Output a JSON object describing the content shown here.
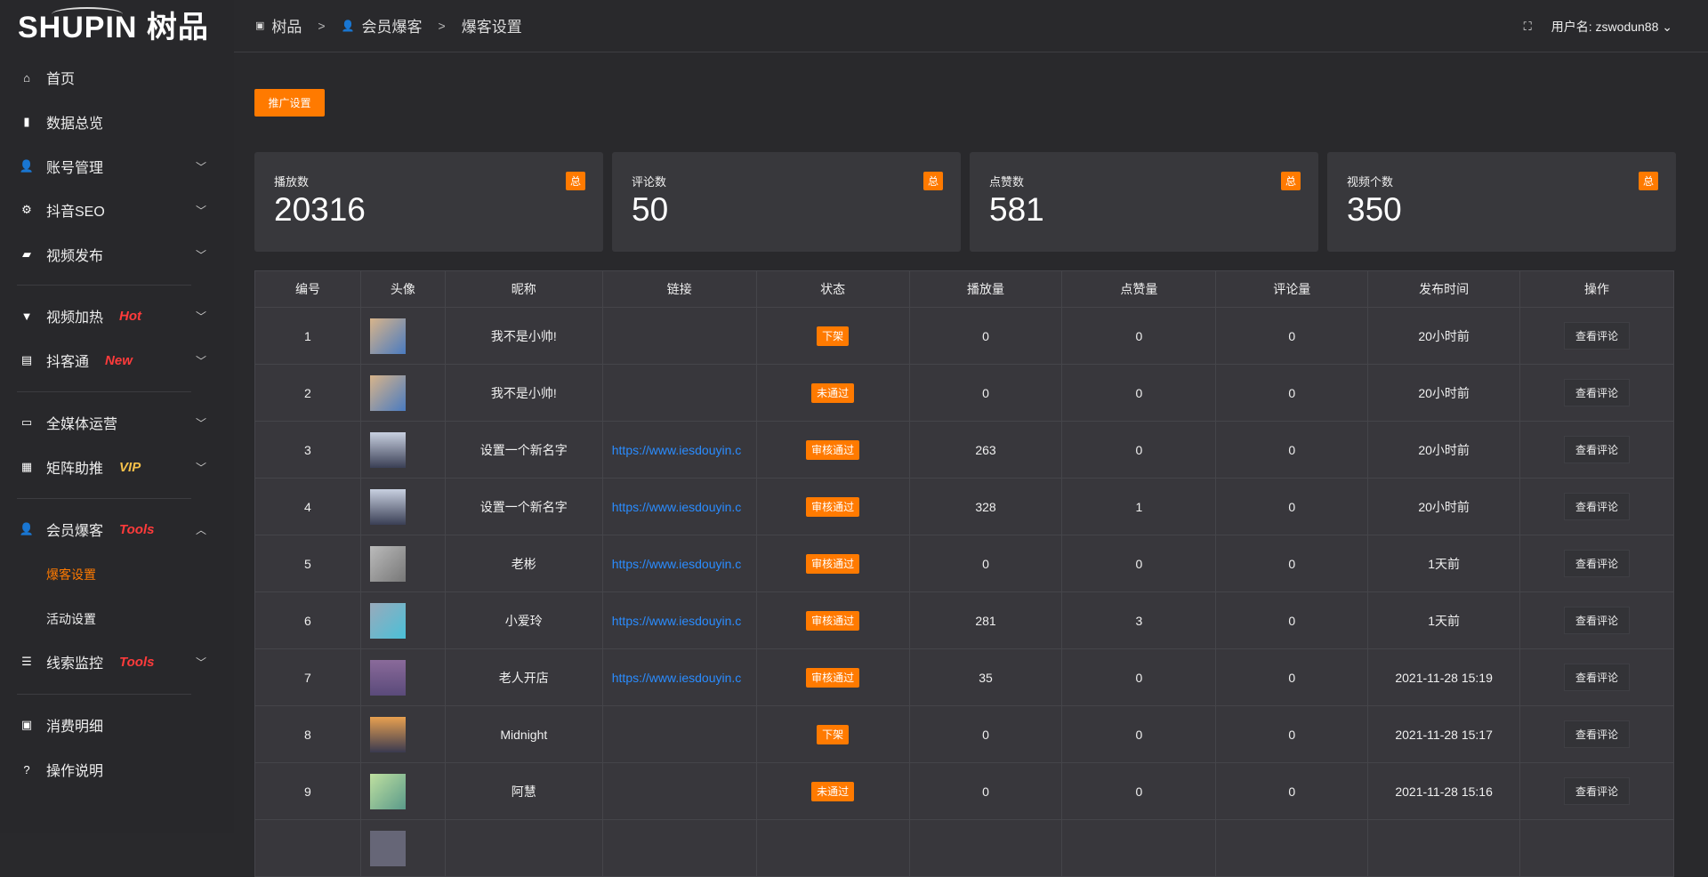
{
  "logo": "SHUPIN 树品",
  "breadcrumb": [
    "树品",
    "会员爆客",
    "爆客设置"
  ],
  "header": {
    "user_label": "用户名: zswodun88"
  },
  "sidebar": {
    "items": [
      {
        "label": "首页",
        "icon": "home-icon"
      },
      {
        "label": "数据总览",
        "icon": "bar-chart-icon"
      },
      {
        "label": "账号管理",
        "icon": "user-icon"
      },
      {
        "label": "抖音SEO",
        "icon": "gear-icon"
      },
      {
        "label": "视频发布",
        "icon": "camera-icon"
      },
      {
        "label": "视频加热",
        "icon": "flag-icon",
        "tag": "Hot",
        "tag_color": "#ff3b3b"
      },
      {
        "label": "抖客通",
        "icon": "chat-icon",
        "tag": "New",
        "tag_color": "#ff3b3b"
      },
      {
        "label": "全媒体运营",
        "icon": "monitor-icon"
      },
      {
        "label": "矩阵助推",
        "icon": "grid-icon",
        "tag": "VIP",
        "tag_color": "#f5c04a"
      },
      {
        "label": "会员爆客",
        "icon": "user-icon",
        "tag": "Tools",
        "tag_color": "#ff3b3b",
        "expanded": true
      },
      {
        "label": "线索监控",
        "icon": "sliders-icon",
        "tag": "Tools",
        "tag_color": "#ff3b3b"
      },
      {
        "label": "消费明细",
        "icon": "wallet-icon"
      },
      {
        "label": "操作说明",
        "icon": "help-icon"
      }
    ],
    "subitems": [
      {
        "label": "爆客设置",
        "active": true
      },
      {
        "label": "活动设置"
      }
    ]
  },
  "promo_button": "推广设置",
  "stats": [
    {
      "label": "播放数",
      "value": "20316",
      "badge": "总"
    },
    {
      "label": "评论数",
      "value": "50",
      "badge": "总"
    },
    {
      "label": "点赞数",
      "value": "581",
      "badge": "总"
    },
    {
      "label": "视频个数",
      "value": "350",
      "badge": "总"
    }
  ],
  "table": {
    "columns": [
      "编号",
      "头像",
      "昵称",
      "链接",
      "状态",
      "播放量",
      "点赞量",
      "评论量",
      "发布时间",
      "操作"
    ],
    "action_label": "查看评论",
    "rows": [
      {
        "id": "1",
        "name": "我不是小帅!",
        "link": "",
        "status": "下架",
        "plays": "0",
        "likes": "0",
        "comments": "0",
        "time": "20小时前"
      },
      {
        "id": "2",
        "name": "我不是小帅!",
        "link": "",
        "status": "未通过",
        "plays": "0",
        "likes": "0",
        "comments": "0",
        "time": "20小时前"
      },
      {
        "id": "3",
        "name": "设置一个新名字",
        "link": "https://www.iesdouyin.c",
        "status": "审核通过",
        "plays": "263",
        "likes": "0",
        "comments": "0",
        "time": "20小时前"
      },
      {
        "id": "4",
        "name": "设置一个新名字",
        "link": "https://www.iesdouyin.c",
        "status": "审核通过",
        "plays": "328",
        "likes": "1",
        "comments": "0",
        "time": "20小时前"
      },
      {
        "id": "5",
        "name": "老彬",
        "link": "https://www.iesdouyin.c",
        "status": "审核通过",
        "plays": "0",
        "likes": "0",
        "comments": "0",
        "time": "1天前"
      },
      {
        "id": "6",
        "name": "小爱玲",
        "link": "https://www.iesdouyin.c",
        "status": "审核通过",
        "plays": "281",
        "likes": "3",
        "comments": "0",
        "time": "1天前"
      },
      {
        "id": "7",
        "name": "老人开店",
        "link": "https://www.iesdouyin.c",
        "status": "审核通过",
        "plays": "35",
        "likes": "0",
        "comments": "0",
        "time": "2021-11-28 15:19"
      },
      {
        "id": "8",
        "name": "Midnight",
        "link": "",
        "status": "下架",
        "plays": "0",
        "likes": "0",
        "comments": "0",
        "time": "2021-11-28 15:17"
      },
      {
        "id": "9",
        "name": "阿慧",
        "link": "",
        "status": "未通过",
        "plays": "0",
        "likes": "0",
        "comments": "0",
        "time": "2021-11-28 15:16"
      }
    ]
  },
  "colors": {
    "accent": "#ff7a00",
    "link": "#2a8cff"
  }
}
